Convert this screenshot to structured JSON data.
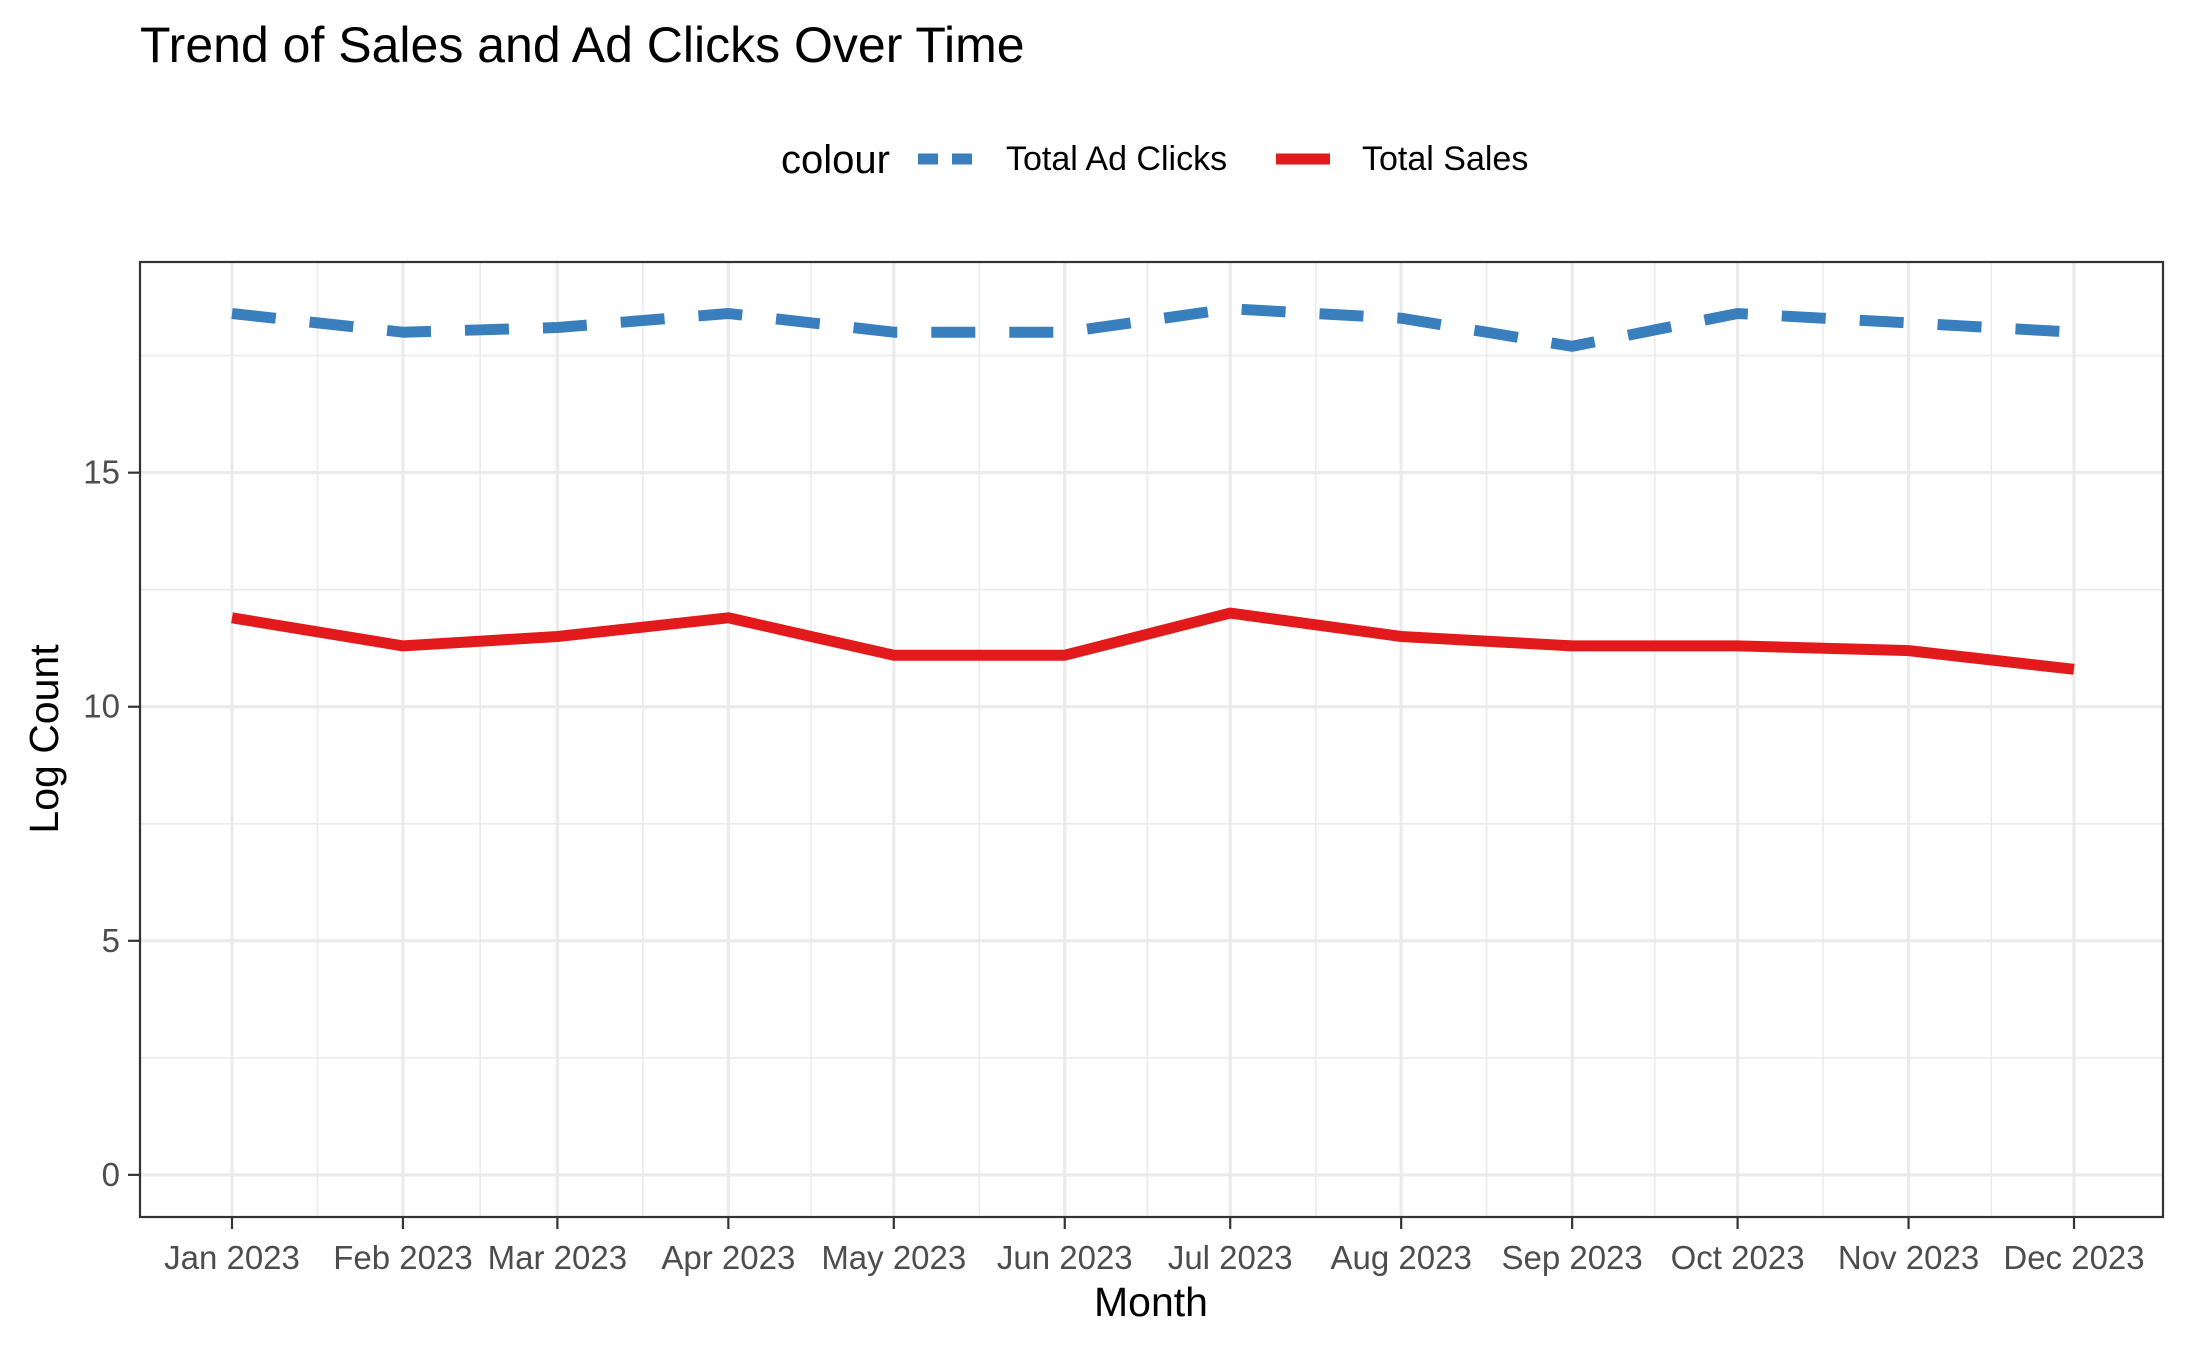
{
  "chart_data": {
    "type": "line",
    "title": "Trend of Sales and Ad Clicks Over Time",
    "xlabel": "Month",
    "ylabel": "Log Count",
    "categories": [
      "Jan 2023",
      "Feb 2023",
      "Mar 2023",
      "Apr 2023",
      "May 2023",
      "Jun 2023",
      "Jul 2023",
      "Aug 2023",
      "Sep 2023",
      "Oct 2023",
      "Nov 2023",
      "Dec 2023"
    ],
    "x_dates": [
      "2023-01-01",
      "2023-02-01",
      "2023-03-01",
      "2023-04-01",
      "2023-05-01",
      "2023-06-01",
      "2023-07-01",
      "2023-08-01",
      "2023-09-01",
      "2023-10-01",
      "2023-11-01",
      "2023-12-01"
    ],
    "ylim": [
      -0.9,
      19.5
    ],
    "yticks": [
      0,
      5,
      10,
      15
    ],
    "yticks_labels": [
      "0",
      "5",
      "10",
      "15"
    ],
    "grid": true,
    "legend": {
      "title": "colour",
      "position": "top",
      "entries": [
        {
          "label": "Total Ad Clicks",
          "color": "#3a7fbd",
          "linetype": "dashed"
        },
        {
          "label": "Total Sales",
          "color": "#e31a1c",
          "linetype": "solid"
        }
      ]
    },
    "series": [
      {
        "name": "Total Ad Clicks",
        "color": "#3a7fbd",
        "linetype": "dashed",
        "values": [
          18.4,
          18.0,
          18.1,
          18.4,
          18.0,
          18.0,
          18.5,
          18.3,
          17.7,
          18.4,
          18.2,
          18.0
        ]
      },
      {
        "name": "Total Sales",
        "color": "#e31a1c",
        "linetype": "solid",
        "values": [
          11.9,
          11.3,
          11.5,
          11.9,
          11.1,
          11.1,
          12.0,
          11.5,
          11.3,
          11.3,
          11.2,
          10.8
        ]
      }
    ]
  }
}
